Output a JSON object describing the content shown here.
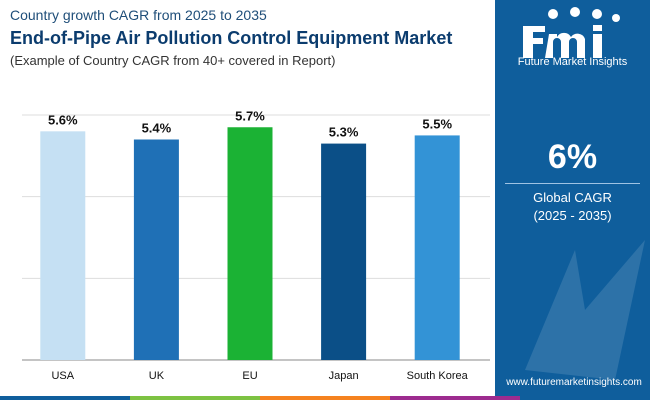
{
  "header": {
    "eyebrow": "Country growth CAGR from 2025 to 2035",
    "title": "End-of-Pipe Air Pollution Control Equipment Market",
    "subtitle": "(Example of Country CAGR from 40+ covered in Report)"
  },
  "chart_data": {
    "type": "bar",
    "categories": [
      "USA",
      "UK",
      "EU",
      "Japan",
      "South Korea"
    ],
    "values": [
      5.6,
      5.4,
      5.7,
      5.3,
      5.5
    ],
    "value_labels": [
      "5.6%",
      "5.4%",
      "5.7%",
      "5.3%",
      "5.5%"
    ],
    "bar_colors": [
      "#c5e0f3",
      "#1f70b6",
      "#1bb234",
      "#0b4f87",
      "#3393d6"
    ],
    "title": "",
    "xlabel": "",
    "ylabel": "",
    "ylim": [
      0,
      6
    ],
    "grid": true,
    "legend": "none"
  },
  "sidepanel": {
    "brand_name": "Future Market Insights",
    "global_value": "6%",
    "global_label": "Global CAGR",
    "global_period": "(2025 - 2035)",
    "url": "www.futuremarketinsights.com",
    "background": "#0f5e9c"
  },
  "bottom_bar": {
    "colors": [
      "#0f5e9c",
      "#7dc242",
      "#f58220",
      "#9d2b8f",
      "#0f5e9c"
    ]
  }
}
